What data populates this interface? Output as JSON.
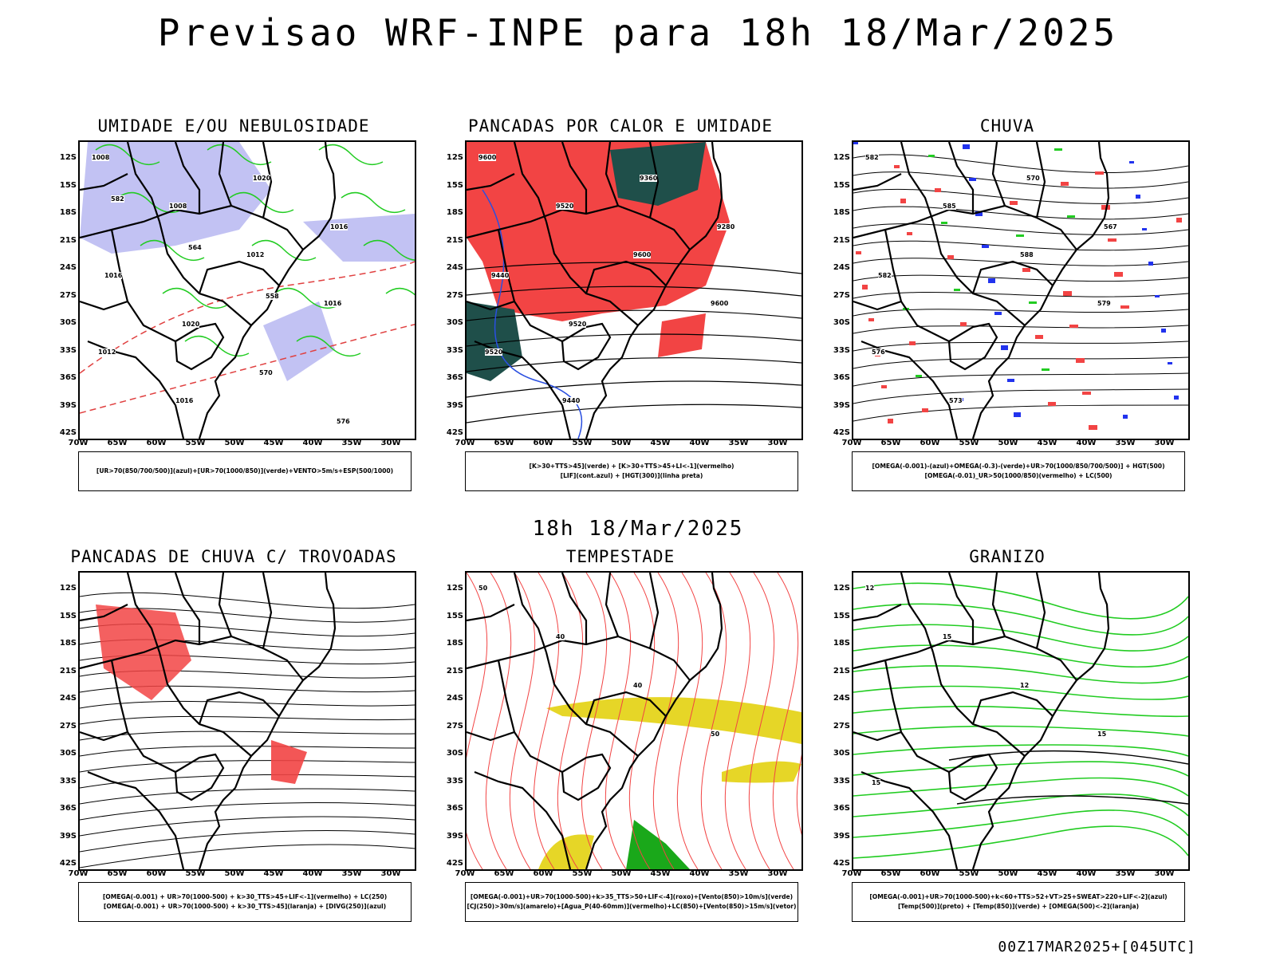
{
  "header": {
    "title": "Previsao WRF-INPE  para 18h 18/Mar/2025"
  },
  "mid_label": "18h 18/Mar/2025",
  "footer": {
    "stamp": "00Z17MAR2025+[045UTC]"
  },
  "axes": {
    "lat_labels": [
      "12S",
      "15S",
      "18S",
      "21S",
      "24S",
      "27S",
      "30S",
      "33S",
      "36S",
      "39S",
      "42S"
    ],
    "lon_labels": [
      "70W",
      "65W",
      "60W",
      "55W",
      "50W",
      "45W",
      "40W",
      "35W",
      "30W"
    ]
  },
  "panels": [
    {
      "title": "UMIDADE E/OU NEBULOSIDADE",
      "legend": [
        "[UR>70(850/700/500)](azul)+[UR>70(1000/850)](verde)+VENTO>5m/s+ESP(500/1000)"
      ],
      "contour_labels": [
        "1008",
        "1008",
        "1012",
        "1016",
        "1012",
        "1016",
        "1020",
        "1016",
        "1016",
        "1020",
        "570",
        "576",
        "582",
        "564",
        "558"
      ]
    },
    {
      "title": "PANCADAS POR CALOR E UMIDADE",
      "legend": [
        "[K>30+TTS>45](verde) + [K>30+TTS>45+LI<-1](vermelho)",
        "[LIF](cont.azul) + [HGT(300)](linha preta)"
      ],
      "contour_labels": [
        "9600",
        "9520",
        "9600",
        "9600",
        "9520",
        "9440",
        "9360",
        "9280",
        "9440",
        "9520"
      ]
    },
    {
      "title": "CHUVA",
      "legend": [
        "[OMEGA(-0.001)-(azul)+OMEGA(-0.3)-(verde)+UR>70(1000/850/700/500)] + HGT(500)",
        "[OMEGA(-0.01)_UR>50(1000/850)(vermelho) + LC(500)"
      ],
      "contour_labels": [
        "582",
        "585",
        "588",
        "579",
        "576",
        "573",
        "570",
        "567",
        "582"
      ]
    },
    {
      "title": "PANCADAS DE CHUVA C/ TROVOADAS",
      "legend": [
        "[OMEGA(-0.001) + UR>70(1000-500) + k>30_TTS>45+LIF<-1](vermelho) + LC(250)",
        "[OMEGA(-0.001) + UR>70(1000-500) + k>30_TTS>45](laranja) + [DIVG(250)](azul)"
      ],
      "contour_labels": []
    },
    {
      "title": "TEMPESTADE",
      "legend": [
        "[OMEGA(-0.001)+UR>70(1000-500)+k>35_TTS>50+LIF<-4](roxo)+[Vento(850)>10m/s](verde)",
        "[CJ(250)>30m/s](amarelo)+[Agua_P(40-60mm)](vermelho)+LC(850)+[Vento(850)>15m/s](vetor)"
      ],
      "contour_labels": [
        "50",
        "40",
        "40",
        "50"
      ]
    },
    {
      "title": "GRANIZO",
      "legend": [
        "[OMEGA(-0.001)+UR>70(1000-500)+k<60+TTS>52+VT>25+SWEAT>220+LIF<-2](azul)",
        "[Temp(500)](preto) + [Temp(850)](verde) + [OMEGA(500)<-2](laranja)"
      ],
      "contour_labels": [
        "12",
        "15",
        "12",
        "15",
        "15"
      ]
    }
  ]
}
